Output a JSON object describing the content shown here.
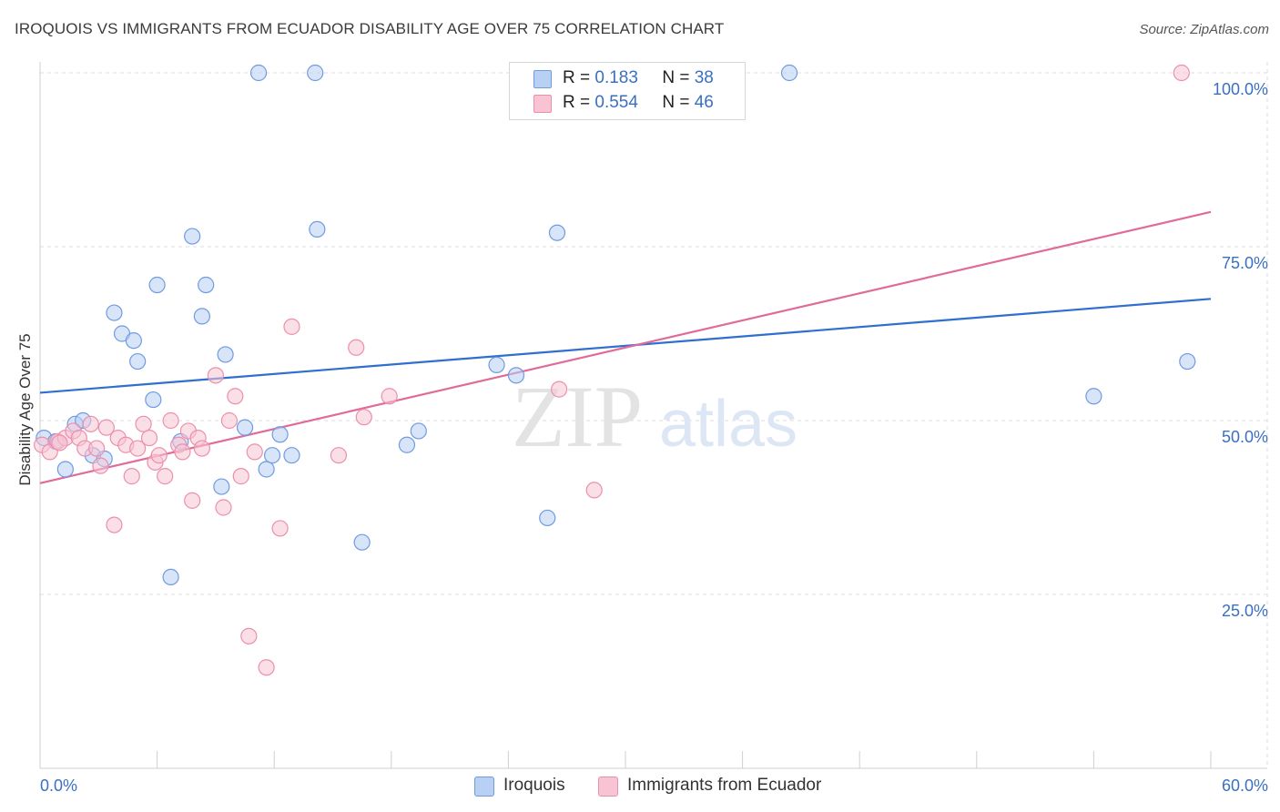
{
  "title": "IROQUOIS VS IMMIGRANTS FROM ECUADOR DISABILITY AGE OVER 75 CORRELATION CHART",
  "source": "Source: ZipAtlas.com",
  "watermark": {
    "zip": "ZIP",
    "atlas": "atlas"
  },
  "legend": {
    "rows": [
      {
        "r_label": "R =",
        "r_value": "0.183",
        "n_label": "N =",
        "n_value": "38"
      },
      {
        "r_label": "R =",
        "r_value": "0.554",
        "n_label": "N =",
        "n_value": "46"
      }
    ]
  },
  "colors": {
    "blue_fill": "#b8d0f4",
    "blue_stroke": "#6f9be0",
    "blue_line": "#2f6fcf",
    "pink_fill": "#f8c4d4",
    "pink_stroke": "#ec8fac",
    "pink_line": "#e06b99",
    "tick_label": "#3a6fc4",
    "grid": "#dedede"
  },
  "chart_data": {
    "type": "scatter",
    "xlabel": "",
    "ylabel": "Disability Age Over 75",
    "xlim": [
      0,
      60
    ],
    "ylim": [
      0,
      100
    ],
    "x_tick_labels": [
      "0.0%",
      "60.0%"
    ],
    "y_tick_labels": [
      "25.0%",
      "50.0%",
      "75.0%",
      "100.0%"
    ],
    "y_ticks": [
      25,
      50,
      75,
      100
    ],
    "grid": true,
    "legend_position": "top-center",
    "series": [
      {
        "name": "Iroquois",
        "color": "#b8d0f4",
        "points": [
          [
            0.2,
            47.5
          ],
          [
            0.8,
            47.0
          ],
          [
            1.3,
            43.0
          ],
          [
            1.8,
            49.5
          ],
          [
            2.2,
            50.0
          ],
          [
            2.7,
            45.0
          ],
          [
            3.3,
            44.5
          ],
          [
            3.8,
            65.5
          ],
          [
            4.2,
            62.5
          ],
          [
            4.8,
            61.5
          ],
          [
            5.0,
            58.5
          ],
          [
            5.8,
            53.0
          ],
          [
            6.0,
            69.5
          ],
          [
            6.7,
            27.5
          ],
          [
            7.2,
            47.0
          ],
          [
            7.8,
            76.5
          ],
          [
            8.3,
            65.0
          ],
          [
            8.5,
            69.5
          ],
          [
            9.3,
            40.5
          ],
          [
            9.5,
            59.5
          ],
          [
            10.5,
            49.0
          ],
          [
            11.2,
            100.0
          ],
          [
            11.6,
            43.0
          ],
          [
            11.9,
            45.0
          ],
          [
            12.3,
            48.0
          ],
          [
            12.9,
            45.0
          ],
          [
            14.1,
            100.0
          ],
          [
            14.2,
            77.5
          ],
          [
            16.5,
            32.5
          ],
          [
            18.8,
            46.5
          ],
          [
            19.4,
            48.5
          ],
          [
            23.4,
            58.0
          ],
          [
            24.4,
            56.5
          ],
          [
            26.0,
            36.0
          ],
          [
            26.5,
            77.0
          ],
          [
            38.4,
            100.0
          ],
          [
            54.0,
            53.5
          ],
          [
            58.8,
            58.5
          ]
        ],
        "trend": {
          "x": [
            0,
            60
          ],
          "y": [
            54.0,
            67.5
          ]
        }
      },
      {
        "name": "Immigrants from Ecuador",
        "color": "#f8c4d4",
        "points": [
          [
            0.1,
            46.5
          ],
          [
            0.5,
            45.5
          ],
          [
            0.9,
            47.0
          ],
          [
            1.3,
            47.5
          ],
          [
            1.7,
            48.5
          ],
          [
            2.0,
            47.5
          ],
          [
            2.3,
            46.0
          ],
          [
            2.6,
            49.5
          ],
          [
            2.9,
            46.0
          ],
          [
            3.1,
            43.5
          ],
          [
            3.4,
            49.0
          ],
          [
            3.8,
            35.0
          ],
          [
            4.0,
            47.5
          ],
          [
            4.4,
            46.5
          ],
          [
            4.7,
            42.0
          ],
          [
            5.0,
            46.0
          ],
          [
            5.3,
            49.5
          ],
          [
            5.6,
            47.5
          ],
          [
            5.9,
            44.0
          ],
          [
            6.1,
            45.0
          ],
          [
            6.4,
            42.0
          ],
          [
            6.7,
            50.0
          ],
          [
            7.1,
            46.5
          ],
          [
            7.3,
            45.5
          ],
          [
            7.6,
            48.5
          ],
          [
            7.8,
            38.5
          ],
          [
            8.1,
            47.5
          ],
          [
            8.3,
            46.0
          ],
          [
            9.0,
            56.5
          ],
          [
            9.4,
            37.5
          ],
          [
            9.7,
            50.0
          ],
          [
            10.0,
            53.5
          ],
          [
            10.3,
            42.0
          ],
          [
            10.7,
            19.0
          ],
          [
            11.0,
            45.5
          ],
          [
            11.6,
            14.5
          ],
          [
            12.3,
            34.5
          ],
          [
            12.9,
            63.5
          ],
          [
            15.3,
            45.0
          ],
          [
            16.2,
            60.5
          ],
          [
            16.6,
            50.5
          ],
          [
            17.9,
            53.5
          ],
          [
            26.6,
            54.5
          ],
          [
            28.4,
            40.0
          ],
          [
            58.5,
            100.0
          ],
          [
            1.0,
            46.8
          ]
        ],
        "trend": {
          "x": [
            0,
            60
          ],
          "y": [
            41.0,
            80.0
          ]
        }
      }
    ]
  }
}
